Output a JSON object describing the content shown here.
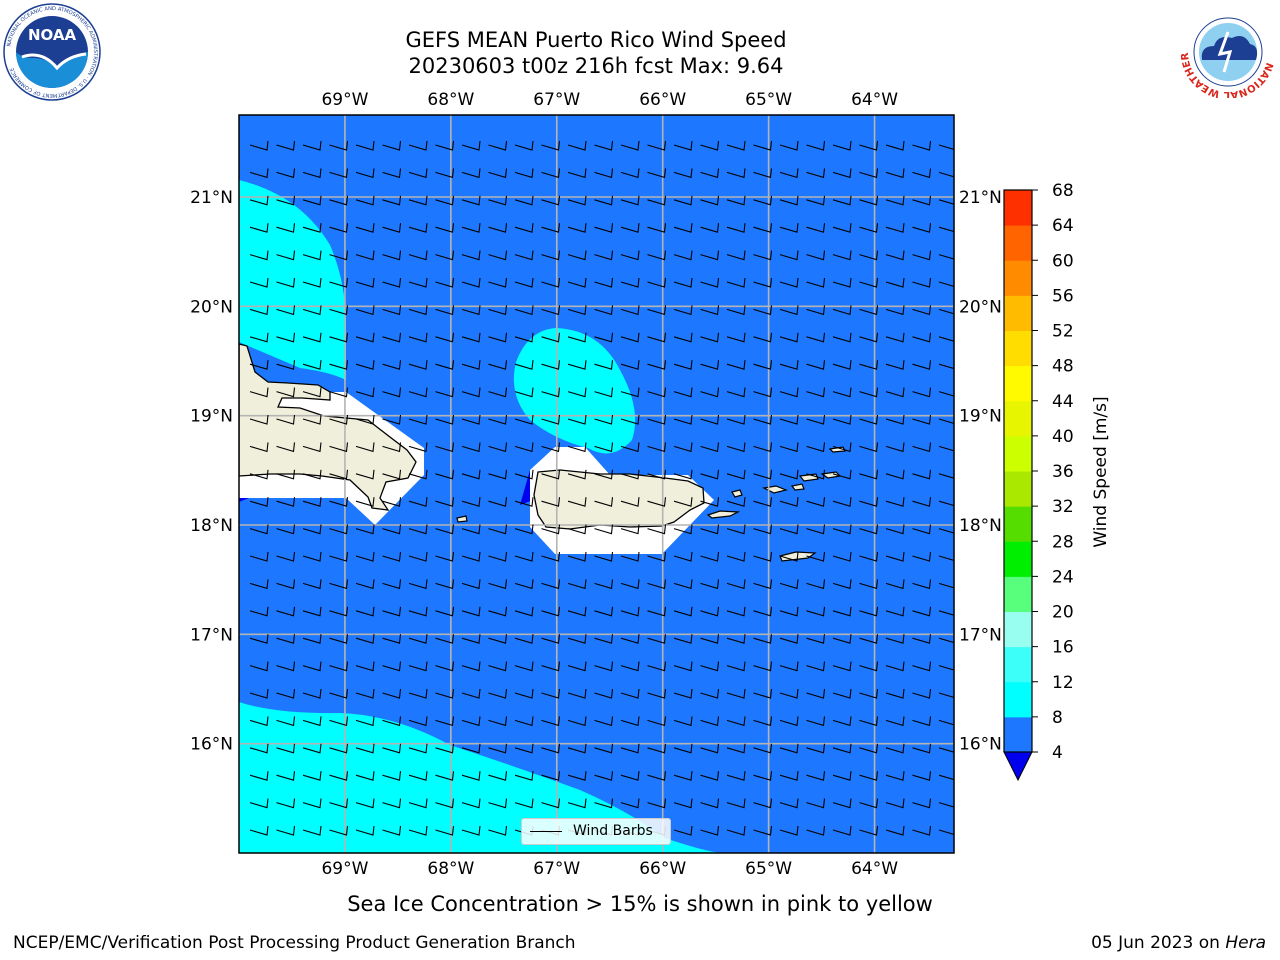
{
  "title": {
    "line1": "GEFS MEAN Puerto Rico Wind Speed",
    "line2": "20230603 t00z 216h fcst   Max: 9.64"
  },
  "logos": {
    "left": {
      "name": "noaa-logo",
      "text": "NOAA",
      "ring_text": "NATIONAL OCEANIC AND ATMOSPHERIC ADMINISTRATION · U.S. DEPARTMENT OF COMMERCE",
      "color": "#1c3f94"
    },
    "right": {
      "name": "nws-logo",
      "ring_text": "NATIONAL WEATHER SERVICE",
      "color": "#d9261c"
    }
  },
  "map": {
    "lon_range": [
      -70.0,
      -63.25
    ],
    "lat_range": [
      15.0,
      21.75
    ],
    "lon_ticks": [
      "69°W",
      "68°W",
      "67°W",
      "66°W",
      "65°W",
      "64°W"
    ],
    "lon_tick_values": [
      -69,
      -68,
      -67,
      -66,
      -65,
      -64
    ],
    "lat_ticks": [
      "16°N",
      "17°N",
      "18°N",
      "19°N",
      "20°N",
      "21°N"
    ],
    "lat_tick_values": [
      16,
      17,
      18,
      19,
      20,
      21
    ],
    "grid": true,
    "background_color": "#1e78ff",
    "land_color": "#efefdc",
    "regions": [
      "Hispaniola (eastern Dominican Republic)",
      "Puerto Rico",
      "Virgin Islands"
    ]
  },
  "colorbar": {
    "label": "Wind Speed [m/s]",
    "levels": [
      4,
      8,
      12,
      16,
      20,
      24,
      28,
      32,
      36,
      40,
      44,
      48,
      52,
      56,
      60,
      64,
      68
    ],
    "tick_labels": [
      "4",
      "8",
      "12",
      "16",
      "20",
      "24",
      "28",
      "32",
      "36",
      "40",
      "44",
      "48",
      "52",
      "56",
      "60",
      "64",
      "68"
    ],
    "colors": [
      "#1e78ff",
      "#00ffff",
      "#3dfffa",
      "#98fff0",
      "#58ff7c",
      "#00ee00",
      "#55dd00",
      "#aae800",
      "#ccff00",
      "#e8f500",
      "#fffa00",
      "#ffdd00",
      "#ffbb00",
      "#ff8c00",
      "#ff6400",
      "#ff3000"
    ],
    "under_color": "#0000ee"
  },
  "legend": {
    "label": "Wind Barbs"
  },
  "note": "Sea Ice Concentration > 15% is shown in pink to yellow",
  "footer": {
    "left": "NCEP/EMC/Verification Post Processing Product Generation Branch",
    "right_date": "05 Jun 2023 on ",
    "right_system": "Hera"
  }
}
